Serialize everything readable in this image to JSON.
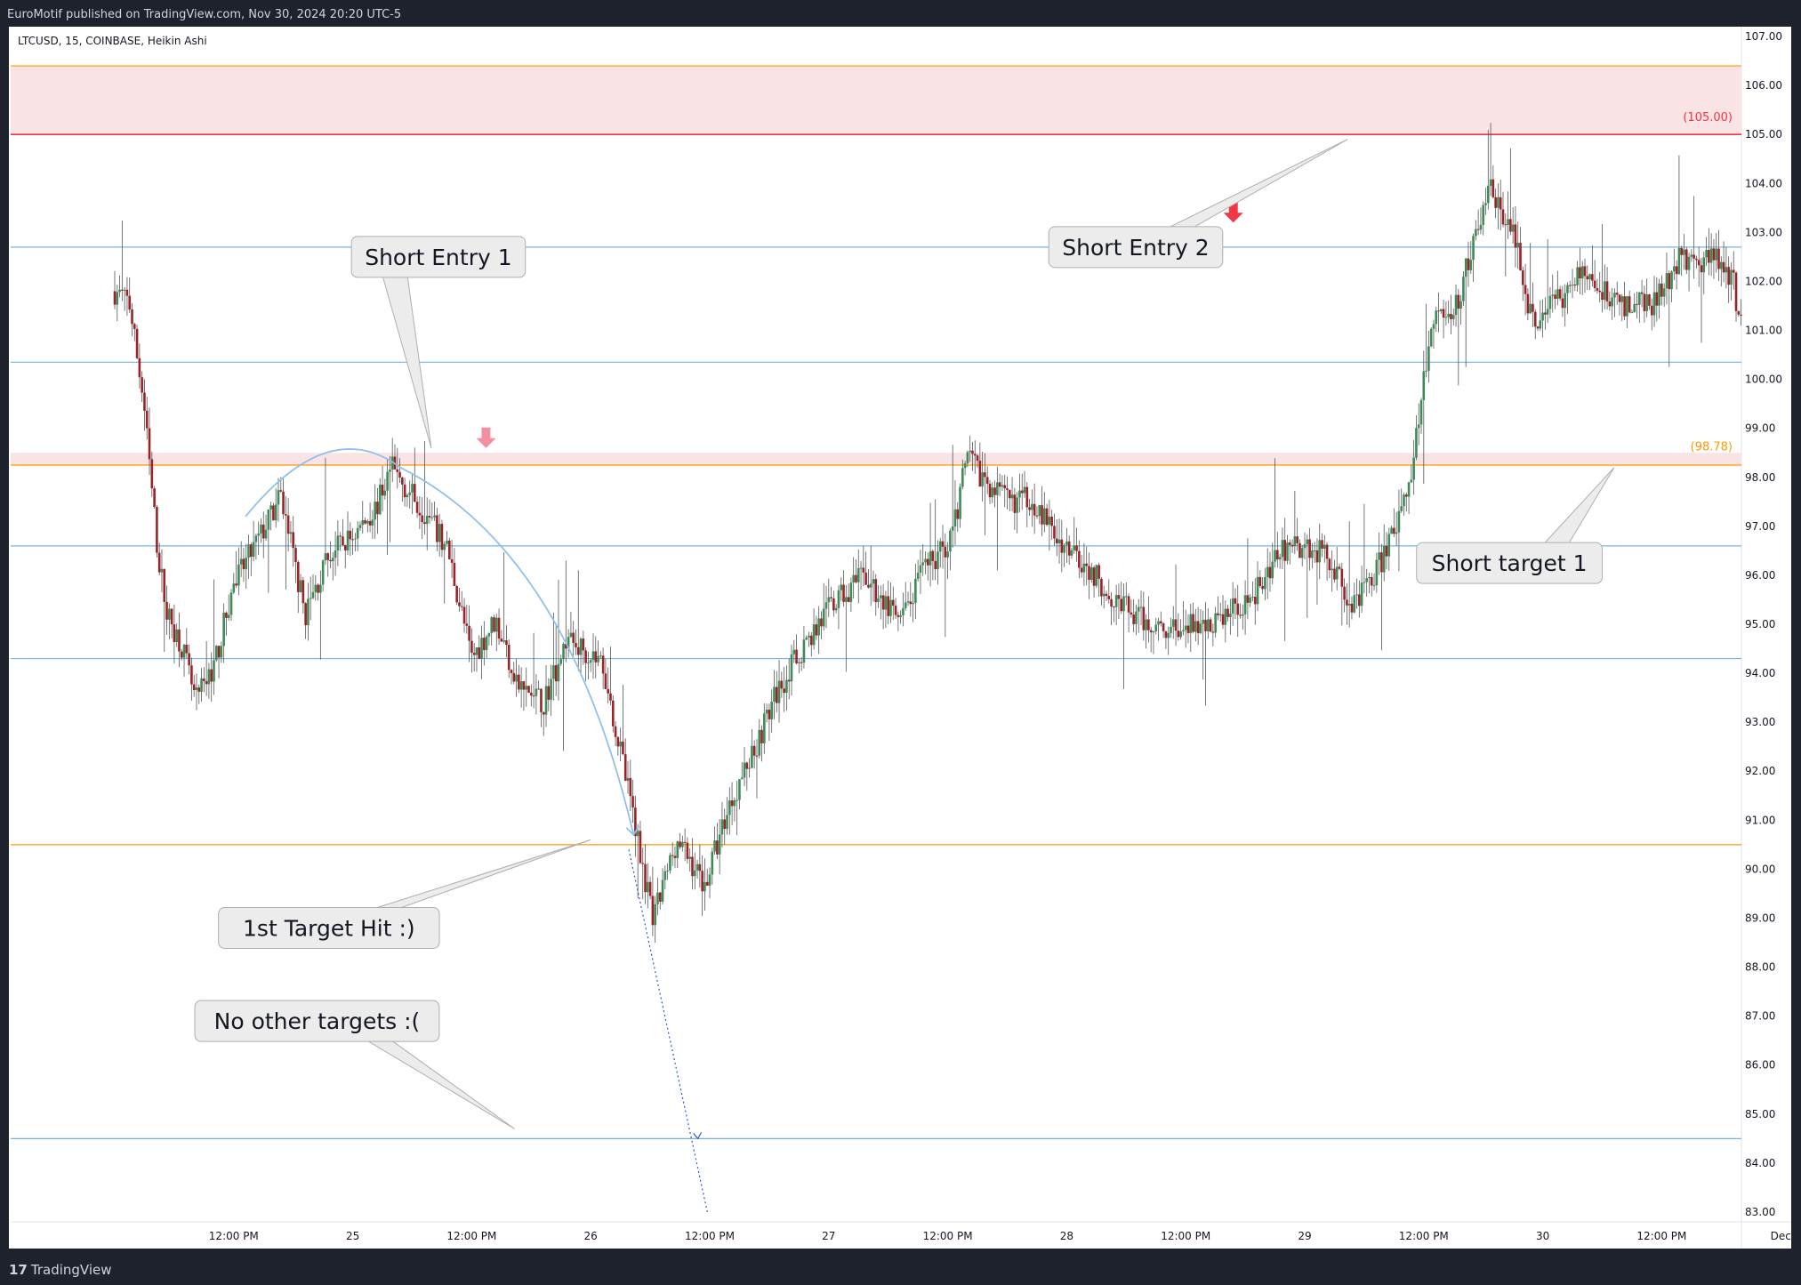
{
  "header": {
    "published_text": "EuroMotif published on TradingView.com, Nov 30, 2024 20:20 UTC-5",
    "symbol_text": "LTCUSD, 15, COINBASE, Heikin Ashi"
  },
  "footer": {
    "logo_mark": "17",
    "logo_text": "TradingView"
  },
  "chart_data": {
    "type": "candlestick",
    "symbol": "LTCUSD",
    "interval": "15",
    "exchange": "COINBASE",
    "chart_style": "Heikin Ashi",
    "ylim": [
      82.8,
      107.2
    ],
    "y_ticks": [
      "107.00",
      "106.00",
      "105.00",
      "104.00",
      "103.00",
      "102.00",
      "101.00",
      "100.00",
      "99.00",
      "98.00",
      "97.00",
      "96.00",
      "95.00",
      "94.00",
      "93.00",
      "92.00",
      "91.00",
      "90.00",
      "89.00",
      "88.00",
      "87.00",
      "86.00",
      "85.00",
      "84.00",
      "83.00"
    ],
    "x_ticks": [
      {
        "t": 0.5,
        "label": "12:00 PM"
      },
      {
        "t": 1.0,
        "label": "25"
      },
      {
        "t": 1.5,
        "label": "12:00 PM"
      },
      {
        "t": 2.0,
        "label": "26"
      },
      {
        "t": 2.5,
        "label": "12:00 PM"
      },
      {
        "t": 3.0,
        "label": "27"
      },
      {
        "t": 3.5,
        "label": "12:00 PM"
      },
      {
        "t": 4.0,
        "label": "28"
      },
      {
        "t": 4.5,
        "label": "12:00 PM"
      },
      {
        "t": 5.0,
        "label": "29"
      },
      {
        "t": 5.5,
        "label": "12:00 PM"
      },
      {
        "t": 6.0,
        "label": "30"
      },
      {
        "t": 6.5,
        "label": "12:00 PM"
      },
      {
        "t": 7.0,
        "label": "Dec"
      }
    ],
    "price_path": [
      [
        0.0,
        101.8
      ],
      [
        0.06,
        101.6
      ],
      [
        0.12,
        99.6
      ],
      [
        0.18,
        96.5
      ],
      [
        0.22,
        95.2
      ],
      [
        0.28,
        94.6
      ],
      [
        0.34,
        93.4
      ],
      [
        0.42,
        94.2
      ],
      [
        0.5,
        95.8
      ],
      [
        0.6,
        96.7
      ],
      [
        0.7,
        97.6
      ],
      [
        0.8,
        95.2
      ],
      [
        0.9,
        96.4
      ],
      [
        1.0,
        96.8
      ],
      [
        1.1,
        97.4
      ],
      [
        1.16,
        98.2
      ],
      [
        1.3,
        97.3
      ],
      [
        1.4,
        96.5
      ],
      [
        1.5,
        94.3
      ],
      [
        1.6,
        95.1
      ],
      [
        1.7,
        93.7
      ],
      [
        1.8,
        93.4
      ],
      [
        1.9,
        94.7
      ],
      [
        2.0,
        94.4
      ],
      [
        2.05,
        94.2
      ],
      [
        2.12,
        92.5
      ],
      [
        2.2,
        90.6
      ],
      [
        2.26,
        88.9
      ],
      [
        2.36,
        90.6
      ],
      [
        2.48,
        89.7
      ],
      [
        2.58,
        91.3
      ],
      [
        2.7,
        92.6
      ],
      [
        2.78,
        93.6
      ],
      [
        2.9,
        94.6
      ],
      [
        3.0,
        95.3
      ],
      [
        3.15,
        96.0
      ],
      [
        3.3,
        95.0
      ],
      [
        3.4,
        96.1
      ],
      [
        3.52,
        96.8
      ],
      [
        3.58,
        98.4
      ],
      [
        3.65,
        98.0
      ],
      [
        3.75,
        97.5
      ],
      [
        3.85,
        97.6
      ],
      [
        3.95,
        96.8
      ],
      [
        4.05,
        96.4
      ],
      [
        4.15,
        95.8
      ],
      [
        4.3,
        95.1
      ],
      [
        4.45,
        94.9
      ],
      [
        4.6,
        95.0
      ],
      [
        4.7,
        95.3
      ],
      [
        4.8,
        95.7
      ],
      [
        4.9,
        96.5
      ],
      [
        5.0,
        96.6
      ],
      [
        5.1,
        96.4
      ],
      [
        5.2,
        95.4
      ],
      [
        5.3,
        96.1
      ],
      [
        5.4,
        97.1
      ],
      [
        5.45,
        98.2
      ],
      [
        5.5,
        99.9
      ],
      [
        5.55,
        101.5
      ],
      [
        5.62,
        101.2
      ],
      [
        5.7,
        102.6
      ],
      [
        5.78,
        104.0
      ],
      [
        5.88,
        102.9
      ],
      [
        5.96,
        101.1
      ],
      [
        6.1,
        101.8
      ],
      [
        6.2,
        102.3
      ],
      [
        6.28,
        101.6
      ],
      [
        6.38,
        101.5
      ],
      [
        6.48,
        101.6
      ],
      [
        6.58,
        102.6
      ],
      [
        6.66,
        102.1
      ],
      [
        6.72,
        102.7
      ],
      [
        6.8,
        102.0
      ],
      [
        6.84,
        100.9
      ]
    ],
    "horizontal_levels": [
      {
        "price": 106.4,
        "color": "#ff9800"
      },
      {
        "price": 105.0,
        "color": "#f23645"
      },
      {
        "price": 102.7,
        "color": "#74b6e0"
      },
      {
        "price": 100.35,
        "color": "#74b6e0"
      },
      {
        "price": 98.25,
        "color": "#ff9800"
      },
      {
        "price": 96.6,
        "color": "#74b6e0"
      },
      {
        "price": 94.3,
        "color": "#74b6e0"
      },
      {
        "price": 90.5,
        "color": "#ff9800"
      },
      {
        "price": 84.5,
        "color": "#74b6e0"
      }
    ],
    "zones": [
      {
        "from": 105.0,
        "to": 106.4,
        "color": "#f9e3e4"
      },
      {
        "from": 98.25,
        "to": 98.5,
        "color": "#f9e3e4"
      }
    ],
    "price_labels": [
      {
        "text": "(105.00)",
        "price": 105.28,
        "color": "#f23645"
      },
      {
        "text": "(98.78)",
        "price": 98.55,
        "color": "#ff9800"
      }
    ],
    "markers": [
      {
        "t": 4.7,
        "price": 103.4,
        "color": "#f23645"
      },
      {
        "t": 1.56,
        "price": 98.8,
        "color": "#f48fa1"
      }
    ],
    "callouts": [
      {
        "text": "Short Entry 1",
        "t": 1.36,
        "price": 102.5
      },
      {
        "text": "Short Entry 2",
        "t": 4.29,
        "price": 102.7
      },
      {
        "text": "Short target 1",
        "t": 5.86,
        "price": 96.25
      },
      {
        "text": "1st Target Hit :)",
        "t": 0.9,
        "price": 88.8
      },
      {
        "text": "No other targets :(",
        "t": 0.85,
        "price": 86.9
      }
    ],
    "colors": {
      "up": "#26a69a",
      "down": "#b71c1c",
      "up_body": "#3d8b57",
      "down_body": "#9b2227",
      "axis_text": "#131722",
      "curve": "#90c0ec",
      "projection": "#3050e0"
    }
  }
}
